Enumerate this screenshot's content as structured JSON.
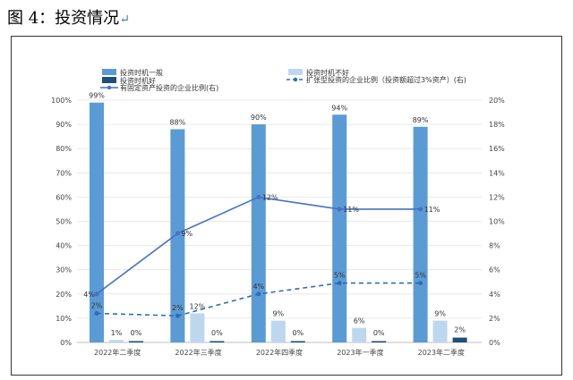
{
  "page": {
    "title": "图 4：投资情况",
    "return_mark": "↵"
  },
  "colors": {
    "general": "#5b9bd5",
    "bad": "#bdd7ee",
    "good": "#1f4e79",
    "solid_line": "#4472c4",
    "dashed_line": "#2e6db4",
    "grid": "#e3e3e3"
  },
  "chart_data": {
    "type": "bar",
    "categories": [
      "2022年二季度",
      "2022年三季度",
      "2022年四季度",
      "2023年一季度",
      "2023年二季度"
    ],
    "series": [
      {
        "name": "投资时机一般",
        "type": "bar",
        "axis": "left",
        "values": [
          99,
          88,
          90,
          94,
          89
        ],
        "labels": [
          "99%",
          "88%",
          "90%",
          "94%",
          "89%"
        ]
      },
      {
        "name": "投资时机不好",
        "type": "bar",
        "axis": "left",
        "values": [
          1,
          12,
          9,
          6,
          9
        ],
        "labels": [
          "1%",
          "12%",
          "9%",
          "6%",
          "9%"
        ]
      },
      {
        "name": "投资时机好",
        "type": "bar",
        "axis": "left",
        "values": [
          0,
          0,
          0,
          0,
          2
        ],
        "labels": [
          "0%",
          "0%",
          "0%",
          "0%",
          "2%"
        ]
      },
      {
        "name": "有固定资产投资的企业比例(右)",
        "type": "line",
        "style": "solid",
        "axis": "right",
        "values": [
          4,
          9,
          12,
          11,
          11
        ],
        "labels": [
          "4%",
          "9%",
          "12%",
          "11%",
          "11%"
        ]
      },
      {
        "name": "扩张型投资的企业比例（投资额超过3%资产）(右)",
        "type": "line",
        "style": "dashed",
        "axis": "right",
        "values": [
          2.4,
          2.2,
          4,
          4.9,
          4.9
        ],
        "labels": [
          "2%",
          "2%",
          "4%",
          "5%",
          "5%"
        ]
      }
    ],
    "left_axis": {
      "min": 0,
      "max": 100,
      "ticks": [
        "0%",
        "10%",
        "20%",
        "30%",
        "40%",
        "50%",
        "60%",
        "70%",
        "80%",
        "90%",
        "100%"
      ]
    },
    "right_axis": {
      "min": 0,
      "max": 20,
      "ticks": [
        "0%",
        "2%",
        "4%",
        "6%",
        "8%",
        "10%",
        "12%",
        "14%",
        "16%",
        "18%",
        "20%"
      ]
    },
    "grid": true,
    "legend_position": "top"
  }
}
